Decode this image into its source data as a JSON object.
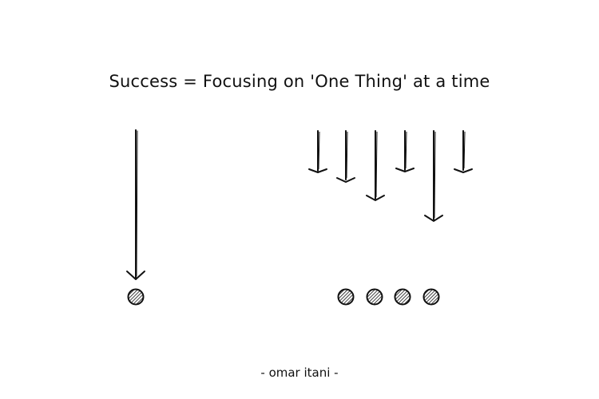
{
  "title": "Success = Focusing on 'One Thing' at a time",
  "credit": "- omar itani -",
  "colors": {
    "ink": "#111111",
    "background": "#ffffff"
  },
  "diagram": {
    "focused": {
      "arrows": 1,
      "dots": 1
    },
    "scattered": {
      "arrows": 6,
      "dots": 4
    }
  }
}
